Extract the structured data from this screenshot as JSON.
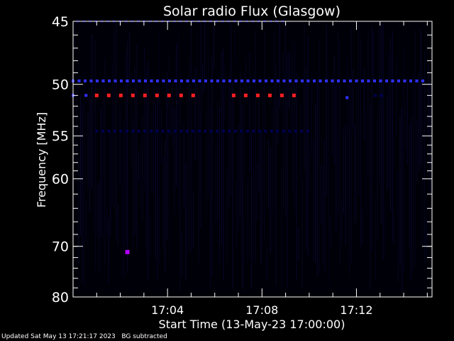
{
  "chart_data": {
    "type": "heatmap",
    "title": "Solar radio Flux (Glasgow)",
    "xlabel": "Start Time (13-May-23 17:00:00)",
    "ylabel": "Frequency [MHz]",
    "x_unit": "minutes after 17:00:00",
    "x_range": [
      0,
      15
    ],
    "ylim": [
      45,
      80
    ],
    "x_ticks": [
      {
        "value": 4,
        "label": "17:04"
      },
      {
        "value": 8,
        "label": "17:08"
      },
      {
        "value": 12,
        "label": "17:12"
      }
    ],
    "y_ticks": [
      {
        "value": 45,
        "label": "45"
      },
      {
        "value": 50,
        "label": "50"
      },
      {
        "value": 55,
        "label": "55"
      },
      {
        "value": 60,
        "label": "60"
      },
      {
        "value": 70,
        "label": "70"
      },
      {
        "value": 80,
        "label": "80"
      }
    ],
    "colors": {
      "background": "#000000",
      "low": "#000050",
      "mid": "#3030ff",
      "high": "#ff2020",
      "spot": "#b000ff",
      "axis": "#ffffff"
    },
    "bands": [
      {
        "freq": 45.0,
        "t_start": 0.2,
        "t_end": 9.0,
        "level": "low"
      },
      {
        "freq": 49.7,
        "t_start": 0.0,
        "t_end": 15.0,
        "level": "mid"
      },
      {
        "freq": 51.0,
        "t_start": 0.0,
        "t_end": 0.25,
        "level": "mid"
      },
      {
        "freq": 51.0,
        "t_start": 0.55,
        "t_end": 0.75,
        "level": "mid"
      },
      {
        "freq": 51.0,
        "t_start": 1.0,
        "t_end": 5.25,
        "level": "high"
      },
      {
        "freq": 51.0,
        "t_start": 6.8,
        "t_end": 9.5,
        "level": "high"
      },
      {
        "freq": 51.2,
        "t_start": 11.6,
        "t_end": 11.8,
        "level": "mid"
      },
      {
        "freq": 51.0,
        "t_start": 12.8,
        "t_end": 13.3,
        "level": "low"
      },
      {
        "freq": 54.5,
        "t_start": 1.0,
        "t_end": 10.0,
        "level": "low"
      }
    ],
    "spots": [
      {
        "freq": 71.0,
        "t": 2.3,
        "level": "spot"
      }
    ]
  },
  "footer": {
    "updated": "Updated Sat May 13 17:21:17 2023",
    "note": "BG subtracted"
  }
}
